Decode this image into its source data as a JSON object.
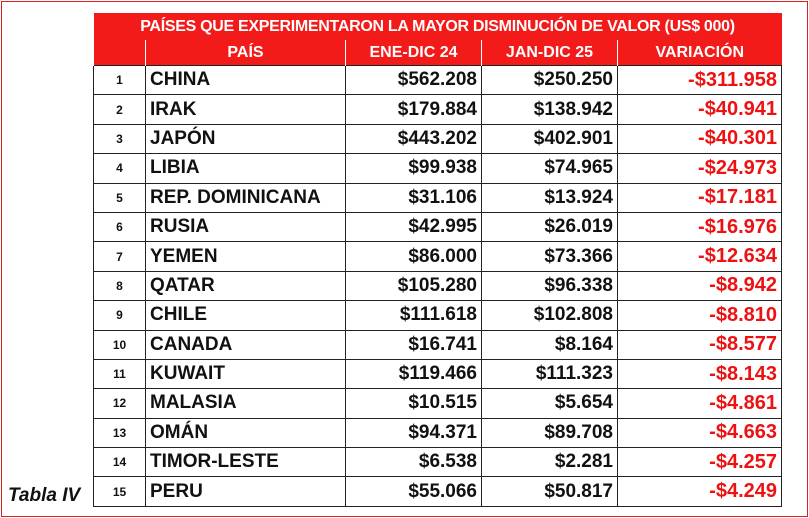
{
  "table": {
    "title": "PAÍSES QUE EXPERIMENTARON LA MAYOR DISMINUCIÓN DE VALOR (US$ 000)",
    "header": [
      "PAÍS",
      "ENE-DIC 24",
      "JAN-DIC 25",
      "VARIACIÓN"
    ],
    "rows": [
      [
        "1",
        "CHINA",
        "$562.208",
        "$250.250",
        "-$311.958"
      ],
      [
        "2",
        "IRAK",
        "$179.884",
        "$138.942",
        "-$40.941"
      ],
      [
        "3",
        "JAPÓN",
        "$443.202",
        "$402.901",
        "-$40.301"
      ],
      [
        "4",
        "LIBIA",
        "$99.938",
        "$74.965",
        "-$24.973"
      ],
      [
        "5",
        "REP. DOMINICANA",
        "$31.106",
        "$13.924",
        "-$17.181"
      ],
      [
        "6",
        "RUSIA",
        "$42.995",
        "$26.019",
        "-$16.976"
      ],
      [
        "7",
        "YEMEN",
        "$86.000",
        "$73.366",
        "-$12.634"
      ],
      [
        "8",
        "QATAR",
        "$105.280",
        "$96.338",
        "-$8.942"
      ],
      [
        "9",
        "CHILE",
        "$111.618",
        "$102.808",
        "-$8.810"
      ],
      [
        "10",
        "CANADA",
        "$16.741",
        "$8.164",
        "-$8.577"
      ],
      [
        "11",
        "KUWAIT",
        "$119.466",
        "$111.323",
        "-$8.143"
      ],
      [
        "12",
        "MALASIA",
        "$10.515",
        "$5.654",
        "-$4.861"
      ],
      [
        "13",
        "OMÁN",
        "$94.371",
        "$89.708",
        "-$4.663"
      ],
      [
        "14",
        "TIMOR-LESTE",
        "$6.538",
        "$2.281",
        "-$4.257"
      ],
      [
        "15",
        "PERU",
        "$55.066",
        "$50.817",
        "-$4.249"
      ]
    ]
  },
  "caption": "Tabla IV"
}
